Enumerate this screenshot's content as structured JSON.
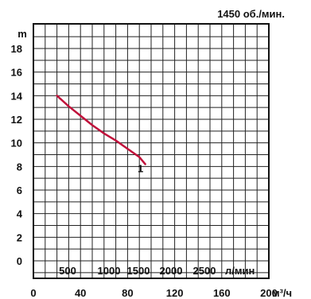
{
  "chart_data": {
    "type": "line",
    "title": "",
    "speed_label": "1450 об./мин.",
    "ylabel": "m",
    "xlabel": "м³/ч",
    "xlim": [
      0,
      200
    ],
    "ylim": [
      0,
      18
    ],
    "x_ticks": [
      0,
      40,
      80,
      120,
      160,
      200
    ],
    "y_ticks": [
      0,
      2,
      4,
      6,
      8,
      10,
      12,
      14,
      16,
      18
    ],
    "secondary_axis": {
      "unit_label": "л/мин",
      "ticks": [
        500,
        1000,
        1500,
        2000,
        2500
      ]
    },
    "grid": true,
    "series": [
      {
        "name": "",
        "curve_label": "1",
        "color": "#c0103a",
        "points": [
          {
            "x": 20,
            "y": 14.0
          },
          {
            "x": 30,
            "y": 13.1
          },
          {
            "x": 40,
            "y": 12.3
          },
          {
            "x": 50,
            "y": 11.5
          },
          {
            "x": 60,
            "y": 10.8
          },
          {
            "x": 70,
            "y": 10.2
          },
          {
            "x": 80,
            "y": 9.5
          },
          {
            "x": 90,
            "y": 8.8
          },
          {
            "x": 95,
            "y": 8.2
          }
        ]
      }
    ]
  }
}
